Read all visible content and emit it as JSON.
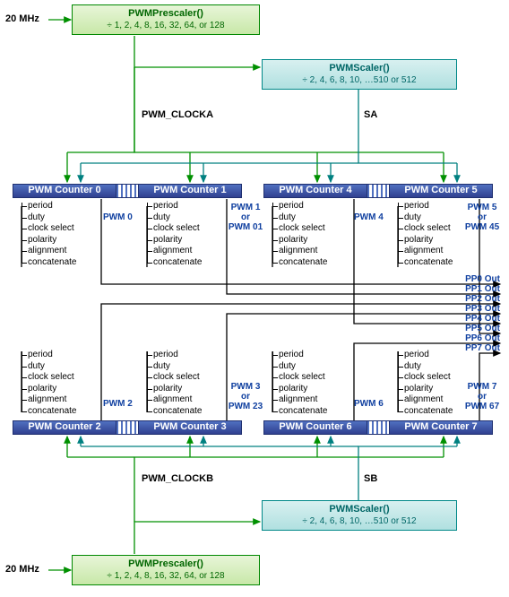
{
  "freq_label": "20 MHz",
  "prescaler": {
    "fn": "PWMPrescaler()",
    "div": "÷ 1, 2, 4, 8, 16, 32, 64, or 128"
  },
  "scaler": {
    "fn": "PWMScaler()",
    "div": "÷ 2, 4, 6, 8, 10, …510 or 512"
  },
  "clkA": "PWM_CLOCKA",
  "clkB": "PWM_CLOCKB",
  "sA": "SA",
  "sB": "SB",
  "counters": [
    "PWM Counter 0",
    "PWM Counter 1",
    "PWM Counter 2",
    "PWM Counter 3",
    "PWM Counter 4",
    "PWM Counter 5",
    "PWM Counter 6",
    "PWM Counter 7"
  ],
  "attrs": [
    "period",
    "duty",
    "clock select",
    "polarity",
    "alignment",
    "concatenate"
  ],
  "pwmlbl": {
    "p0": "PWM 0",
    "p1a": "PWM 1",
    "p1b": "PWM 01",
    "p2": "PWM 2",
    "p3a": "PWM 3",
    "p3b": "PWM 23",
    "p4": "PWM 4",
    "p5a": "PWM 5",
    "p5b": "PWM 45",
    "p6": "PWM 6",
    "p7a": "PWM 7",
    "p7b": "PWM 67",
    "or": "or"
  },
  "outs": [
    "PP0 Out",
    "PP1 Out",
    "PP2 Out",
    "PP3 Out",
    "PP4 Out",
    "PP5 Out",
    "PP6 Out",
    "PP7 Out"
  ],
  "colors": {
    "green": "#009000",
    "teal": "#008080",
    "black": "#000000",
    "blue": "#1040a0"
  }
}
